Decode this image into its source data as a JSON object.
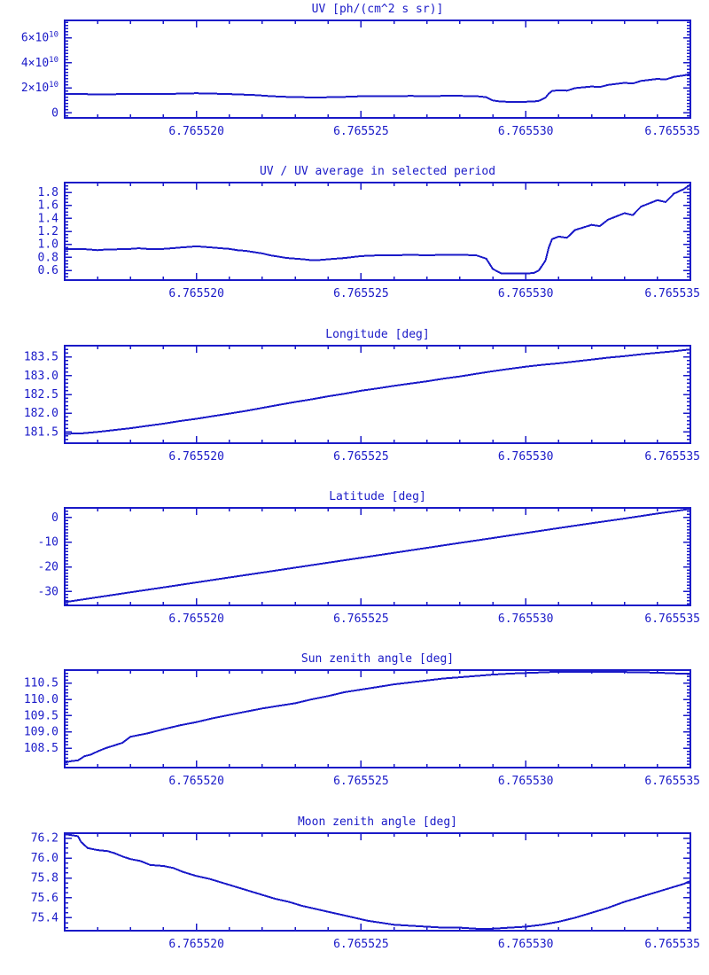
{
  "page": {
    "background": "#ffffff",
    "accent_color": "#1a1ac8"
  },
  "x_axis": {
    "x_base": 6.7655,
    "x_offset_unit": 1e-06,
    "range": [
      16,
      35
    ],
    "minor_step": 1,
    "ticks": [
      {
        "v": 20,
        "label": "6.765520"
      },
      {
        "v": 25,
        "label": "6.765525"
      },
      {
        "v": 30,
        "label": "6.765530"
      },
      {
        "v": 35,
        "label": "6.765535"
      }
    ]
  },
  "chart_data": [
    {
      "id": "uv",
      "type": "line",
      "title": "UV [ph/(cm^2 s sr)]",
      "ylabel": "",
      "xlabel": "",
      "ylim": [
        -4000000000.0,
        74000000000.0
      ],
      "y_minor_step": 2500000000.0,
      "y_ticks": [
        {
          "v": 0,
          "label": "0"
        },
        {
          "v": 20000000000.0,
          "label": "2×10^10"
        },
        {
          "v": 40000000000.0,
          "label": "4×10^10"
        },
        {
          "v": 60000000000.0,
          "label": "6×10^10"
        }
      ],
      "series": [
        {
          "name": "uv",
          "x": [
            16,
            16.5,
            16.75,
            17,
            17.25,
            17.5,
            17.75,
            18,
            18.25,
            18.5,
            18.75,
            19,
            19.25,
            19.5,
            19.75,
            20,
            20.25,
            20.5,
            20.75,
            21,
            21.25,
            21.5,
            21.75,
            22,
            22.25,
            22.5,
            22.75,
            23,
            23.25,
            23.5,
            23.75,
            24,
            24.5,
            25,
            25.5,
            26,
            26.5,
            27,
            27.5,
            28,
            28.5,
            28.8,
            29,
            29.25,
            29.5,
            30,
            30.25,
            30.4,
            30.6,
            30.7,
            30.8,
            31,
            31.25,
            31.5,
            32,
            32.25,
            32.5,
            33,
            33.25,
            33.5,
            34,
            34.25,
            34.5,
            34.8,
            35
          ],
          "y": [
            15100000000.0,
            15100000000.0,
            14900000000.0,
            14700000000.0,
            14900000000.0,
            14900000000.0,
            15100000000.0,
            15100000000.0,
            15200000000.0,
            15100000000.0,
            15100000000.0,
            15100000000.0,
            15200000000.0,
            15400000000.0,
            15600000000.0,
            15700000000.0,
            15600000000.0,
            15400000000.0,
            15200000000.0,
            15100000000.0,
            14700000000.0,
            14600000000.0,
            14300000000.0,
            13900000000.0,
            13400000000.0,
            13100000000.0,
            12800000000.0,
            12600000000.0,
            12500000000.0,
            12200000000.0,
            12300000000.0,
            12500000000.0,
            12800000000.0,
            13300000000.0,
            13400000000.0,
            13400000000.0,
            13600000000.0,
            13400000000.0,
            13600000000.0,
            13600000000.0,
            13400000000.0,
            12600000000.0,
            10000000000.0,
            9000000000.0,
            8900000000.0,
            8900000000.0,
            9100000000.0,
            9700000000.0,
            12200000000.0,
            15400000000.0,
            17500000000.0,
            18100000000.0,
            17800000000.0,
            19800000000.0,
            21100000000.0,
            20700000000.0,
            22400000000.0,
            24000000000.0,
            23500000000.0,
            25600000000.0,
            27200000000.0,
            26700000000.0,
            28800000000.0,
            30000000000.0,
            31100000000.0
          ]
        }
      ]
    },
    {
      "id": "uv-ratio",
      "type": "line",
      "title": "UV / UV average in selected period",
      "ylabel": "",
      "xlabel": "",
      "ylim": [
        0.45,
        1.95
      ],
      "y_minor_step": 0.05,
      "y_ticks": [
        {
          "v": 0.6,
          "label": "0.6"
        },
        {
          "v": 0.8,
          "label": "0.8"
        },
        {
          "v": 1.0,
          "label": "1.0"
        },
        {
          "v": 1.2,
          "label": "1.2"
        },
        {
          "v": 1.4,
          "label": "1.4"
        },
        {
          "v": 1.6,
          "label": "1.6"
        },
        {
          "v": 1.8,
          "label": "1.8"
        }
      ],
      "series": [
        {
          "name": "uv-ratio",
          "x": [
            16,
            16.5,
            16.75,
            17,
            17.25,
            17.5,
            17.75,
            18,
            18.25,
            18.5,
            18.75,
            19,
            19.25,
            19.5,
            19.75,
            20,
            20.25,
            20.5,
            20.75,
            21,
            21.25,
            21.5,
            21.75,
            22,
            22.25,
            22.5,
            22.75,
            23,
            23.25,
            23.5,
            23.75,
            24,
            24.5,
            25,
            25.5,
            26,
            26.5,
            27,
            27.5,
            28,
            28.5,
            28.8,
            29,
            29.25,
            29.5,
            30,
            30.25,
            30.4,
            30.6,
            30.7,
            30.8,
            31,
            31.25,
            31.5,
            32,
            32.25,
            32.5,
            33,
            33.25,
            33.5,
            34,
            34.25,
            34.5,
            34.8,
            35
          ],
          "y": [
            0.93,
            0.93,
            0.92,
            0.91,
            0.92,
            0.92,
            0.93,
            0.93,
            0.94,
            0.93,
            0.93,
            0.93,
            0.94,
            0.95,
            0.96,
            0.97,
            0.96,
            0.95,
            0.94,
            0.93,
            0.91,
            0.9,
            0.88,
            0.86,
            0.83,
            0.81,
            0.79,
            0.78,
            0.77,
            0.755,
            0.76,
            0.77,
            0.79,
            0.82,
            0.83,
            0.83,
            0.84,
            0.83,
            0.84,
            0.84,
            0.83,
            0.78,
            0.62,
            0.555,
            0.55,
            0.55,
            0.56,
            0.6,
            0.75,
            0.95,
            1.08,
            1.12,
            1.1,
            1.22,
            1.3,
            1.28,
            1.38,
            1.48,
            1.45,
            1.58,
            1.68,
            1.65,
            1.78,
            1.85,
            1.92
          ]
        }
      ]
    },
    {
      "id": "longitude",
      "type": "line",
      "title": "Longitude [deg]",
      "ylabel": "",
      "xlabel": "",
      "ylim": [
        181.2,
        183.8
      ],
      "y_minor_step": 0.1,
      "y_ticks": [
        {
          "v": 181.5,
          "label": "181.5"
        },
        {
          "v": 182.0,
          "label": "182.0"
        },
        {
          "v": 182.5,
          "label": "182.5"
        },
        {
          "v": 183.0,
          "label": "183.0"
        },
        {
          "v": 183.5,
          "label": "183.5"
        }
      ],
      "series": [
        {
          "name": "longitude",
          "x": [
            16,
            16.5,
            17,
            17.5,
            18,
            18.5,
            19,
            19.5,
            20,
            20.5,
            21,
            21.5,
            22,
            22.5,
            23,
            23.5,
            24,
            24.5,
            25,
            25.5,
            26,
            26.5,
            27,
            27.5,
            28,
            28.5,
            29,
            29.5,
            30,
            30.5,
            31,
            31.5,
            32,
            32.5,
            33,
            33.5,
            34,
            34.5,
            35
          ],
          "y": [
            181.45,
            181.46,
            181.5,
            181.55,
            181.6,
            181.66,
            181.72,
            181.79,
            181.85,
            181.92,
            181.99,
            182.06,
            182.14,
            182.22,
            182.3,
            182.37,
            182.45,
            182.52,
            182.6,
            182.66,
            182.73,
            182.79,
            182.85,
            182.92,
            182.98,
            183.05,
            183.12,
            183.18,
            183.24,
            183.29,
            183.33,
            183.38,
            183.43,
            183.48,
            183.52,
            183.57,
            183.61,
            183.65,
            183.7
          ]
        }
      ]
    },
    {
      "id": "latitude",
      "type": "line",
      "title": "Latitude [deg]",
      "ylabel": "",
      "xlabel": "",
      "ylim": [
        -35.6,
        3.9
      ],
      "y_minor_step": 1.25,
      "y_ticks": [
        {
          "v": -30,
          "label": "-30"
        },
        {
          "v": -20,
          "label": "-20"
        },
        {
          "v": -10,
          "label": "-10"
        },
        {
          "v": 0,
          "label": "0"
        }
      ],
      "series": [
        {
          "name": "latitude",
          "x": [
            16,
            17,
            18,
            19,
            20,
            21,
            22,
            23,
            24,
            25,
            26,
            27,
            28,
            29,
            30,
            31,
            32,
            33,
            34,
            35
          ],
          "y": [
            -34.3,
            -32.3,
            -30.3,
            -28.3,
            -26.3,
            -24.3,
            -22.3,
            -20.3,
            -18.3,
            -16.3,
            -14.3,
            -12.3,
            -10.3,
            -8.3,
            -6.3,
            -4.3,
            -2.3,
            -0.4,
            1.6,
            3.5
          ]
        }
      ]
    },
    {
      "id": "sun-zenith-angle",
      "type": "line",
      "title": "Sun zenith angle [deg]",
      "ylabel": "",
      "xlabel": "",
      "ylim": [
        107.9,
        110.9
      ],
      "y_minor_step": 0.1,
      "y_ticks": [
        {
          "v": 108.5,
          "label": "108.5"
        },
        {
          "v": 109.0,
          "label": "109.0"
        },
        {
          "v": 109.5,
          "label": "109.5"
        },
        {
          "v": 110.0,
          "label": "110.0"
        },
        {
          "v": 110.5,
          "label": "110.5"
        }
      ],
      "series": [
        {
          "name": "sun-zenith-angle",
          "x": [
            16,
            16.2,
            16.4,
            16.6,
            16.8,
            17,
            17.25,
            17.5,
            17.75,
            18,
            18.25,
            18.5,
            19,
            19.5,
            20,
            20.5,
            21,
            21.5,
            22,
            22.5,
            23,
            23.5,
            24,
            24.5,
            25,
            25.5,
            26,
            26.5,
            27,
            27.5,
            28,
            28.5,
            29,
            29.5,
            30,
            30.5,
            31,
            31.5,
            32,
            32.5,
            33,
            33.5,
            34,
            34.5,
            35
          ],
          "y": [
            108.05,
            108.1,
            108.12,
            108.25,
            108.3,
            108.4,
            108.5,
            108.58,
            108.66,
            108.85,
            108.9,
            108.95,
            109.08,
            109.2,
            109.3,
            109.42,
            109.52,
            109.62,
            109.72,
            109.8,
            109.88,
            110.0,
            110.1,
            110.22,
            110.3,
            110.38,
            110.46,
            110.52,
            110.58,
            110.64,
            110.68,
            110.72,
            110.76,
            110.79,
            110.81,
            110.83,
            110.85,
            110.85,
            110.85,
            110.85,
            110.84,
            110.83,
            110.82,
            110.8,
            110.78
          ]
        }
      ]
    },
    {
      "id": "moon-zenith-angle",
      "type": "line",
      "title": "Moon zenith angle [deg]",
      "ylabel": "",
      "xlabel": "",
      "ylim": [
        75.27,
        76.25
      ],
      "y_minor_step": 0.05,
      "y_ticks": [
        {
          "v": 75.4,
          "label": "75.4"
        },
        {
          "v": 75.6,
          "label": "75.6"
        },
        {
          "v": 75.8,
          "label": "75.8"
        },
        {
          "v": 76.0,
          "label": "76.0"
        },
        {
          "v": 76.2,
          "label": "76.2"
        }
      ],
      "series": [
        {
          "name": "moon-zenith-angle",
          "x": [
            16,
            16.2,
            16.4,
            16.5,
            16.7,
            17,
            17.3,
            17.5,
            17.8,
            18,
            18.3,
            18.6,
            19,
            19.3,
            19.6,
            20,
            20.4,
            20.8,
            21.2,
            21.6,
            22,
            22.4,
            22.8,
            23.2,
            23.6,
            24,
            24.4,
            24.8,
            25.2,
            25.6,
            26,
            26.5,
            27,
            27.5,
            28,
            28.5,
            29,
            29.5,
            30,
            30.5,
            31,
            31.5,
            32,
            32.5,
            33,
            33.5,
            34,
            34.5,
            34.8,
            35
          ],
          "y": [
            76.24,
            76.23,
            76.22,
            76.16,
            76.1,
            76.08,
            76.07,
            76.05,
            76.01,
            75.99,
            75.97,
            75.93,
            75.92,
            75.9,
            75.86,
            75.82,
            75.79,
            75.75,
            75.71,
            75.67,
            75.63,
            75.59,
            75.56,
            75.52,
            75.49,
            75.46,
            75.43,
            75.4,
            75.37,
            75.35,
            75.33,
            75.32,
            75.31,
            75.3,
            75.3,
            75.29,
            75.29,
            75.3,
            75.31,
            75.33,
            75.36,
            75.4,
            75.45,
            75.5,
            75.56,
            75.61,
            75.66,
            75.71,
            75.74,
            75.77
          ]
        }
      ]
    }
  ]
}
